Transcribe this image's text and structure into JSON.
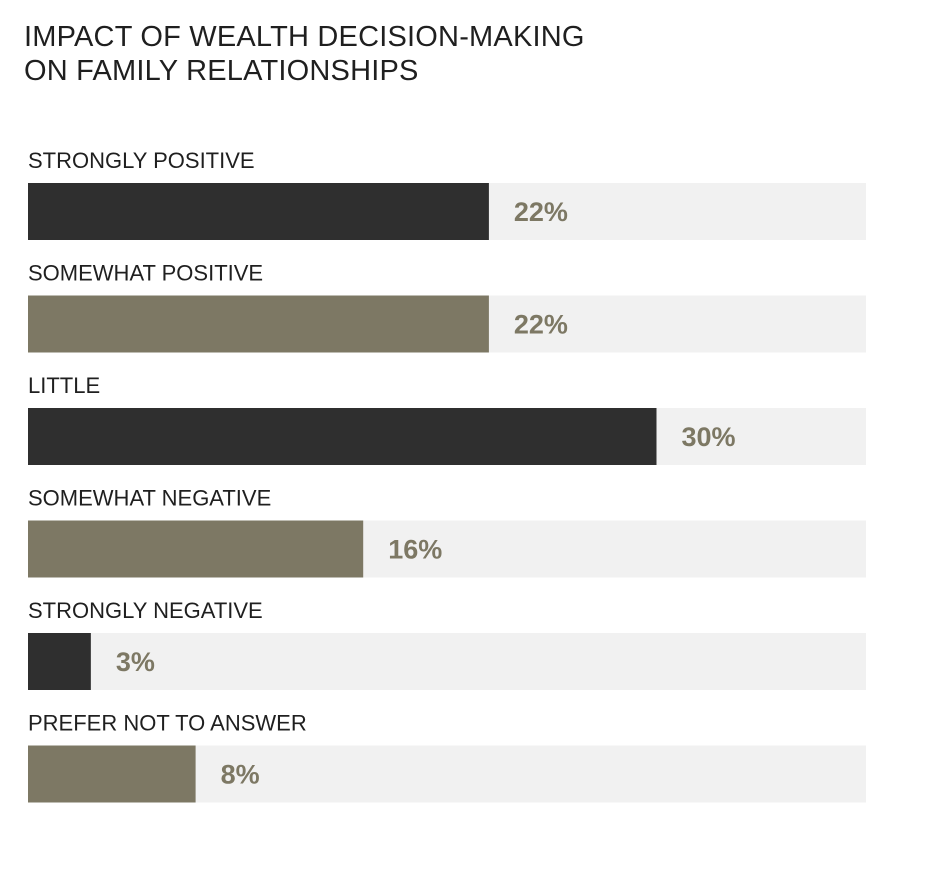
{
  "chart_data": {
    "type": "bar",
    "orientation": "horizontal",
    "title_lines": [
      "IMPACT OF WEALTH DECISION-MAKING",
      "ON FAMILY RELATIONSHIPS"
    ],
    "categories": [
      "STRONGLY POSITIVE",
      "SOMEWHAT POSITIVE",
      "LITTLE",
      "SOMEWHAT NEGATIVE",
      "STRONGLY NEGATIVE",
      "PREFER NOT TO ANSWER"
    ],
    "values": [
      22,
      22,
      30,
      16,
      3,
      8
    ],
    "value_labels": [
      "22%",
      "22%",
      "30%",
      "16%",
      "3%",
      "8%"
    ],
    "xlim": [
      0,
      40
    ],
    "grid": false,
    "bar_colors": [
      "#2f2f2f",
      "#7d7864",
      "#2f2f2f",
      "#7d7864",
      "#2f2f2f",
      "#7d7864"
    ],
    "track_color": "#f1f1f1",
    "value_label_color": "#7d7864"
  }
}
